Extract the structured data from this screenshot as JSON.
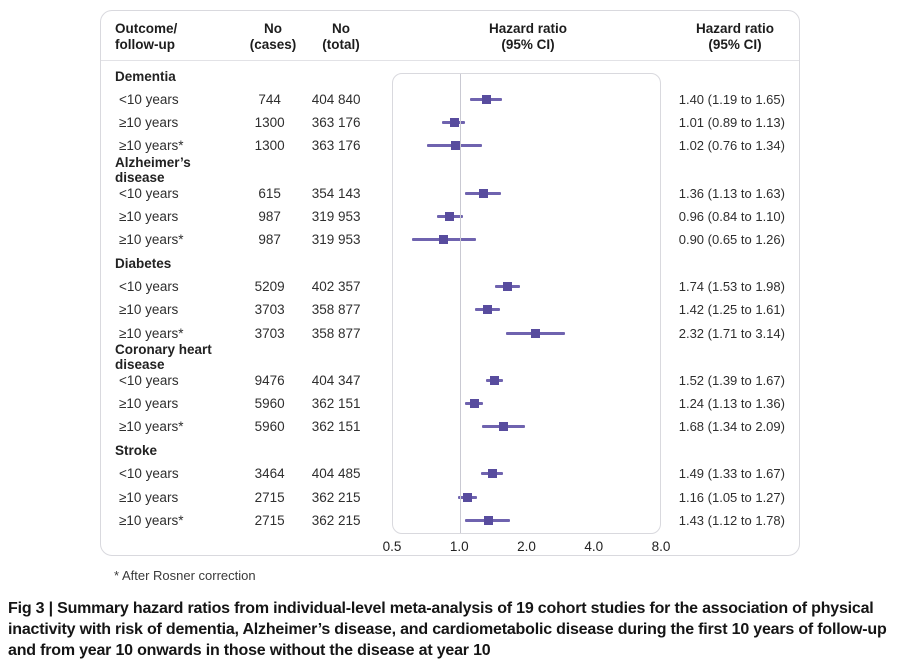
{
  "table": {
    "headers": [
      {
        "line1": "Outcome/",
        "line2": "follow-up"
      },
      {
        "line1": "No",
        "line2": "(cases)"
      },
      {
        "line1": "No",
        "line2": "(total)"
      },
      {
        "line1": "Hazard ratio",
        "line2": "(95% CI)"
      },
      {
        "line1": "Hazard ratio",
        "line2": "(95% CI)"
      }
    ]
  },
  "figure": {
    "footnote": "* After Rosner correction",
    "caption": "Fig 3 | Summary hazard ratios from individual-level meta-analysis of 19 cohort studies for the association of physical inactivity with risk of dementia, Alzheimer’s disease, and cardiometabolic disease during the first 10 years of follow-up and from year 10 onwards in those without the disease at year 10"
  },
  "chart_data": {
    "type": "scatter",
    "subtype": "forest-plot",
    "x_scale": "log2",
    "x_range": [
      0.5,
      8.0
    ],
    "x_ticks": [
      0.5,
      1.0,
      2.0,
      4.0,
      8.0
    ],
    "x_tick_labels": [
      "0.5",
      "1.0",
      "2.0",
      "4.0",
      "8.0"
    ],
    "reference_line": 1.0,
    "grid": false,
    "colors": {
      "marker": "#584c9e",
      "ci_line": "#6f63af",
      "reference": "#c9c9d2"
    },
    "groups": [
      {
        "name": "Dementia",
        "rows": [
          {
            "label": "<10 years",
            "cases": "744",
            "total": "404 840",
            "hr": 1.4,
            "lo": 1.19,
            "hi": 1.65,
            "hr_text": "1.40 (1.19 to 1.65)"
          },
          {
            "label": "≥10 years",
            "cases": "1300",
            "total": "363 176",
            "hr": 1.01,
            "lo": 0.89,
            "hi": 1.13,
            "hr_text": "1.01 (0.89 to 1.13)"
          },
          {
            "label": "≥10 years*",
            "cases": "1300",
            "total": "363 176",
            "hr": 1.02,
            "lo": 0.76,
            "hi": 1.34,
            "hr_text": "1.02 (0.76 to 1.34)"
          }
        ]
      },
      {
        "name": "Alzheimer’s disease",
        "rows": [
          {
            "label": "<10 years",
            "cases": "615",
            "total": "354 143",
            "hr": 1.36,
            "lo": 1.13,
            "hi": 1.63,
            "hr_text": "1.36 (1.13 to 1.63)"
          },
          {
            "label": "≥10 years",
            "cases": "987",
            "total": "319 953",
            "hr": 0.96,
            "lo": 0.84,
            "hi": 1.1,
            "hr_text": "0.96 (0.84 to 1.10)"
          },
          {
            "label": "≥10 years*",
            "cases": "987",
            "total": "319 953",
            "hr": 0.9,
            "lo": 0.65,
            "hi": 1.26,
            "hr_text": "0.90 (0.65 to 1.26)"
          }
        ]
      },
      {
        "name": "Diabetes",
        "rows": [
          {
            "label": "<10 years",
            "cases": "5209",
            "total": "402 357",
            "hr": 1.74,
            "lo": 1.53,
            "hi": 1.98,
            "hr_text": "1.74 (1.53 to 1.98)"
          },
          {
            "label": "≥10 years",
            "cases": "3703",
            "total": "358 877",
            "hr": 1.42,
            "lo": 1.25,
            "hi": 1.61,
            "hr_text": "1.42 (1.25 to 1.61)"
          },
          {
            "label": "≥10 years*",
            "cases": "3703",
            "total": "358 877",
            "hr": 2.32,
            "lo": 1.71,
            "hi": 3.14,
            "hr_text": "2.32 (1.71 to 3.14)"
          }
        ]
      },
      {
        "name": "Coronary heart disease",
        "rows": [
          {
            "label": "<10 years",
            "cases": "9476",
            "total": "404 347",
            "hr": 1.52,
            "lo": 1.39,
            "hi": 1.67,
            "hr_text": "1.52 (1.39 to 1.67)"
          },
          {
            "label": "≥10 years",
            "cases": "5960",
            "total": "362 151",
            "hr": 1.24,
            "lo": 1.13,
            "hi": 1.36,
            "hr_text": "1.24 (1.13 to 1.36)"
          },
          {
            "label": "≥10 years*",
            "cases": "5960",
            "total": "362 151",
            "hr": 1.68,
            "lo": 1.34,
            "hi": 2.09,
            "hr_text": "1.68 (1.34 to 2.09)"
          }
        ]
      },
      {
        "name": "Stroke",
        "rows": [
          {
            "label": "<10 years",
            "cases": "3464",
            "total": "404 485",
            "hr": 1.49,
            "lo": 1.33,
            "hi": 1.67,
            "hr_text": "1.49 (1.33 to 1.67)"
          },
          {
            "label": "≥10 years",
            "cases": "2715",
            "total": "362 215",
            "hr": 1.16,
            "lo": 1.05,
            "hi": 1.27,
            "hr_text": "1.16 (1.05 to 1.27)"
          },
          {
            "label": "≥10 years*",
            "cases": "2715",
            "total": "362 215",
            "hr": 1.43,
            "lo": 1.12,
            "hi": 1.78,
            "hr_text": "1.43 (1.12 to 1.78)"
          }
        ]
      }
    ]
  }
}
